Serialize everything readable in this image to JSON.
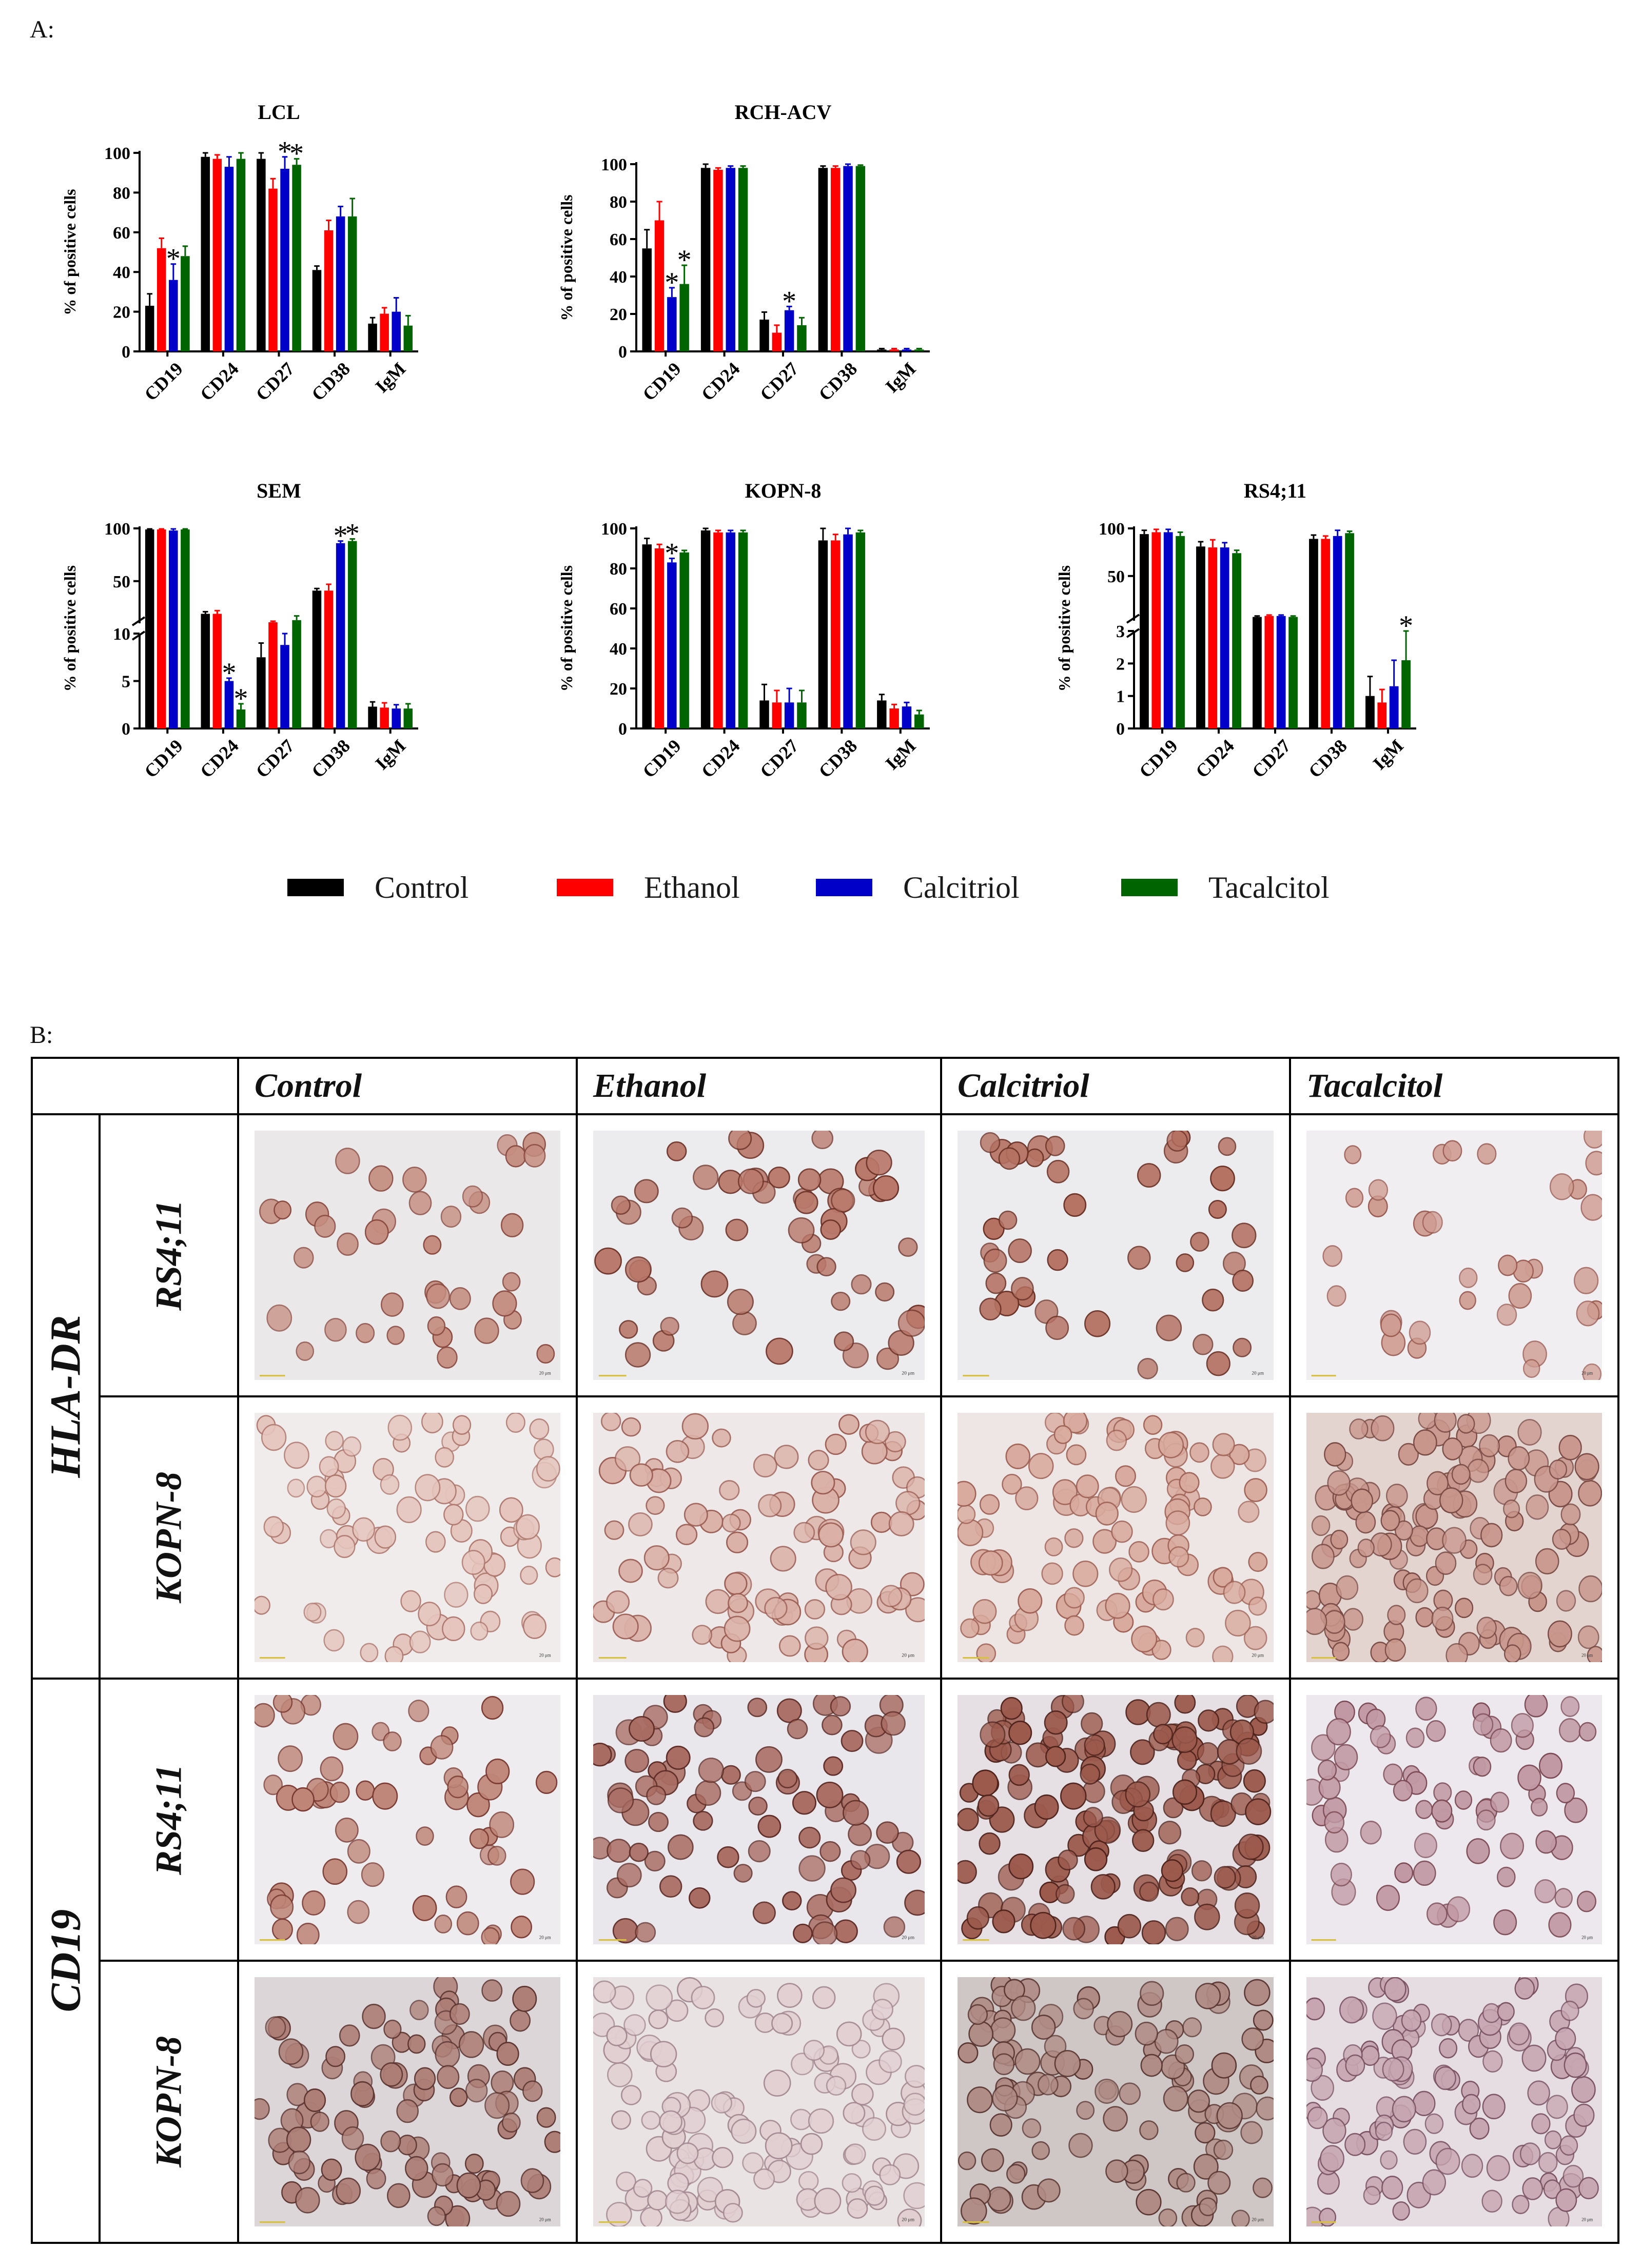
{
  "panels": {
    "a_label": "A:",
    "b_label": "B:"
  },
  "colors": {
    "Control": "#000000",
    "Ethanol": "#ff0000",
    "Calcitriol": "#0000c8",
    "Tacalcitol": "#006400"
  },
  "chart_data": [
    {
      "type": "bar",
      "title": "LCL",
      "ylabel": "% of positive cells",
      "categories": [
        "CD19",
        "CD24",
        "CD27",
        "CD38",
        "IgM"
      ],
      "yticks": [
        "0",
        "20",
        "40",
        "60",
        "80",
        "100"
      ],
      "ylim": [
        0,
        100
      ],
      "series": [
        {
          "name": "Control",
          "values": [
            23,
            98,
            97,
            41,
            14
          ],
          "err": [
            6,
            2,
            3,
            2,
            3
          ]
        },
        {
          "name": "Ethanol",
          "values": [
            52,
            97,
            82,
            61,
            19
          ],
          "err": [
            5,
            2,
            5,
            5,
            3
          ]
        },
        {
          "name": "Calcitriol",
          "values": [
            36,
            93,
            92,
            68,
            20
          ],
          "err": [
            8,
            5,
            6,
            5,
            7
          ]
        },
        {
          "name": "Tacalcitol",
          "values": [
            48,
            97,
            94,
            68,
            13
          ],
          "err": [
            5,
            3,
            3,
            9,
            5
          ]
        }
      ],
      "annotations": [
        {
          "category": "CD19",
          "series": "Calcitriol",
          "text": "*"
        },
        {
          "category": "CD27",
          "series": "Calcitriol",
          "text": "*"
        },
        {
          "category": "CD27",
          "series": "Tacalcitol",
          "text": "*"
        }
      ]
    },
    {
      "type": "bar",
      "title": "RCH-ACV",
      "ylabel": "% of positive cells",
      "categories": [
        "CD19",
        "CD24",
        "CD27",
        "CD38",
        "IgM"
      ],
      "yticks": [
        "0",
        "20",
        "40",
        "60",
        "80",
        "100"
      ],
      "ylim": [
        0,
        100
      ],
      "series": [
        {
          "name": "Control",
          "values": [
            55,
            98,
            17,
            98,
            1
          ],
          "err": [
            10,
            2,
            4,
            1,
            0.5
          ]
        },
        {
          "name": "Ethanol",
          "values": [
            70,
            97,
            10,
            98,
            1
          ],
          "err": [
            10,
            1,
            4,
            1,
            0.5
          ]
        },
        {
          "name": "Calcitriol",
          "values": [
            29,
            98,
            22,
            99,
            1
          ],
          "err": [
            5,
            1,
            2,
            1,
            0.5
          ]
        },
        {
          "name": "Tacalcitol",
          "values": [
            36,
            98,
            14,
            99,
            1
          ],
          "err": [
            10,
            1,
            4,
            0.5,
            0.5
          ]
        }
      ],
      "annotations": [
        {
          "category": "CD19",
          "series": "Calcitriol",
          "text": "*"
        },
        {
          "category": "CD19",
          "series": "Tacalcitol",
          "text": "*"
        },
        {
          "category": "CD27",
          "series": "Calcitriol",
          "text": "*"
        }
      ]
    },
    {
      "type": "bar",
      "title": "SEM",
      "ylabel": "% of positive cells",
      "categories": [
        "CD19",
        "CD24",
        "CD27",
        "CD38",
        "IgM"
      ],
      "axis_break": true,
      "lower": {
        "ylim": [
          0,
          10
        ],
        "yticks": [
          "0",
          "5",
          "10"
        ]
      },
      "upper": {
        "ylim": [
          10,
          100
        ],
        "yticks": [
          "50",
          "100"
        ]
      },
      "series": [
        {
          "name": "Control",
          "values": [
            99,
            19,
            7.5,
            41,
            2.3
          ],
          "err": [
            0.5,
            2,
            1.5,
            2,
            0.5
          ]
        },
        {
          "name": "Ethanol",
          "values": [
            99,
            19,
            11,
            41,
            2.2
          ],
          "err": [
            0.5,
            3,
            1,
            6,
            0.5
          ]
        },
        {
          "name": "Calcitriol",
          "values": [
            98,
            5,
            8.8,
            86,
            2.1
          ],
          "err": [
            1.5,
            0.3,
            1.2,
            2,
            0.4
          ]
        },
        {
          "name": "Tacalcitol",
          "values": [
            99,
            2,
            13,
            88,
            2.1
          ],
          "err": [
            0.5,
            0.6,
            4,
            2,
            0.5
          ]
        }
      ],
      "annotations": [
        {
          "category": "CD24",
          "series": "Calcitriol",
          "text": "*"
        },
        {
          "category": "CD24",
          "series": "Tacalcitol",
          "text": "*"
        },
        {
          "category": "CD38",
          "series": "Calcitriol",
          "text": "*"
        },
        {
          "category": "CD38",
          "series": "Tacalcitol",
          "text": "*"
        }
      ]
    },
    {
      "type": "bar",
      "title": "KOPN-8",
      "ylabel": "% of positive cells",
      "categories": [
        "CD19",
        "CD24",
        "CD27",
        "CD38",
        "IgM"
      ],
      "yticks": [
        "0",
        "20",
        "40",
        "60",
        "80",
        "100"
      ],
      "ylim": [
        0,
        100
      ],
      "series": [
        {
          "name": "Control",
          "values": [
            92,
            99,
            14,
            94,
            14
          ],
          "err": [
            3,
            1,
            8,
            6,
            3
          ]
        },
        {
          "name": "Ethanol",
          "values": [
            90,
            98,
            13,
            94,
            10
          ],
          "err": [
            2,
            1,
            6,
            3,
            2
          ]
        },
        {
          "name": "Calcitriol",
          "values": [
            83,
            98,
            13,
            97,
            11
          ],
          "err": [
            2,
            1,
            7,
            3,
            2
          ]
        },
        {
          "name": "Tacalcitol",
          "values": [
            88,
            98,
            13,
            98,
            7
          ],
          "err": [
            1,
            1,
            6,
            1,
            2
          ]
        }
      ],
      "annotations": [
        {
          "category": "CD19",
          "series": "Calcitriol",
          "text": "*"
        }
      ]
    },
    {
      "type": "bar",
      "title": "RS4;11",
      "ylabel": "% of positive cells",
      "categories": [
        "CD19",
        "CD24",
        "CD27",
        "CD38",
        "IgM"
      ],
      "axis_break": true,
      "lower": {
        "ylim": [
          0,
          3
        ],
        "yticks": [
          "0",
          "1",
          "2",
          "3"
        ]
      },
      "upper": {
        "ylim": [
          3,
          100
        ],
        "yticks": [
          "50",
          "100"
        ]
      },
      "series": [
        {
          "name": "Control",
          "values": [
            94,
            81,
            7,
            89,
            1.0
          ],
          "err": [
            4,
            5,
            1,
            4,
            0.6
          ]
        },
        {
          "name": "Ethanol",
          "values": [
            96,
            80,
            8,
            89,
            0.8
          ],
          "err": [
            3,
            8,
            1,
            3,
            0.4
          ]
        },
        {
          "name": "Calcitriol",
          "values": [
            96,
            80,
            8,
            92,
            1.3
          ],
          "err": [
            3,
            5,
            1,
            6,
            0.8
          ]
        },
        {
          "name": "Tacalcitol",
          "values": [
            92,
            74,
            7,
            95,
            2.1
          ],
          "err": [
            4,
            3,
            1,
            2,
            0.9
          ]
        }
      ],
      "annotations": [
        {
          "category": "IgM",
          "series": "Tacalcitol",
          "text": "*"
        }
      ]
    }
  ],
  "legend": [
    {
      "name": "Control",
      "color": "#000000"
    },
    {
      "name": "Ethanol",
      "color": "#ff0000"
    },
    {
      "name": "Calcitriol",
      "color": "#0000c8"
    },
    {
      "name": "Tacalcitol",
      "color": "#006400"
    }
  ],
  "table_b": {
    "columns": [
      "Control",
      "Ethanol",
      "Calcitriol",
      "Tacalcitol"
    ],
    "markers": [
      "HLA-DR",
      "CD19"
    ],
    "cell_lines": [
      "RS4;11",
      "KOPN-8"
    ],
    "scale_bar_label": "20 μm"
  }
}
